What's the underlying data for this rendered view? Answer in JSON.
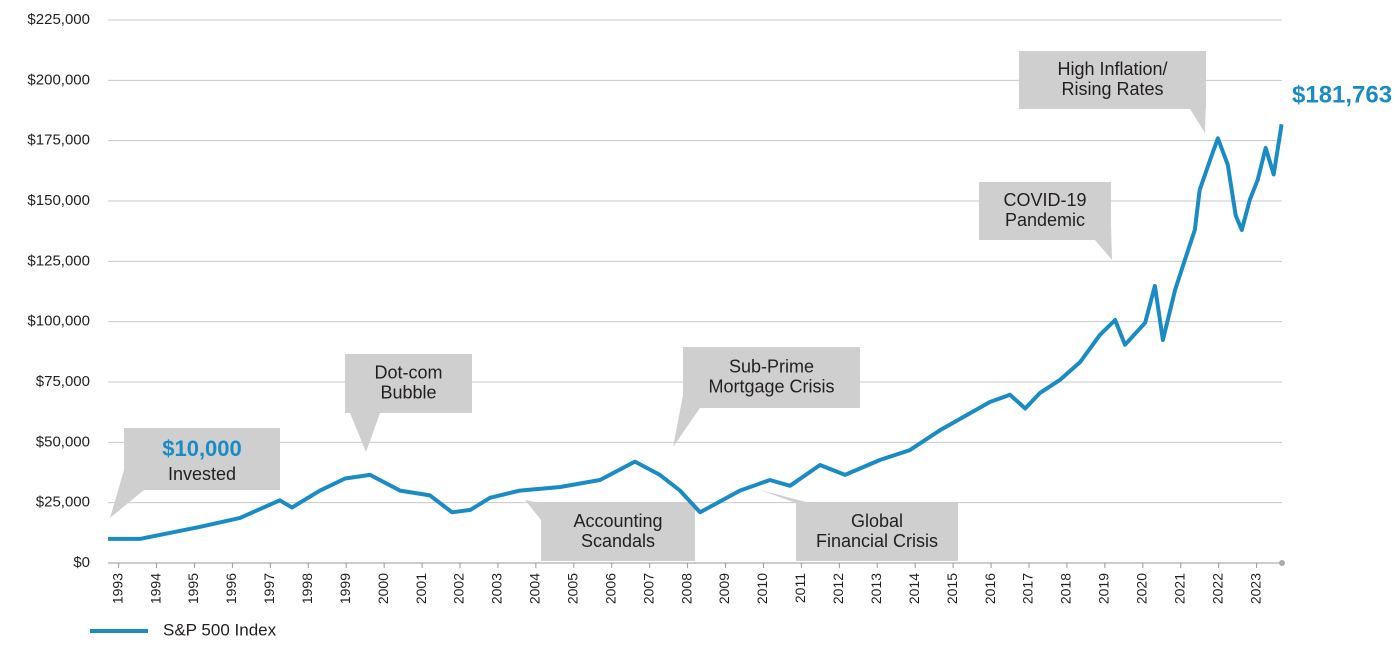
{
  "chart_data": {
    "type": "line",
    "series": [
      {
        "name": "S&P 500 Index",
        "color": "#1a8bc4",
        "values": [
          10000,
          10000,
          15000,
          18700,
          26000,
          23000,
          30000,
          35000,
          36500,
          30000,
          28000,
          21000,
          22000,
          27000,
          30000,
          31500,
          34400,
          42000,
          36500,
          30000,
          21000,
          30000,
          34400,
          32000,
          40600,
          36500,
          42700,
          46800,
          55000,
          62000,
          66700,
          69700,
          64000,
          70500,
          75900,
          83300,
          94500,
          100700,
          90400,
          99500,
          114800,
          92400,
          113000,
          125600,
          138000,
          154600,
          169000,
          176000,
          165000,
          144000,
          138000,
          150500,
          158800,
          172000,
          161000,
          181763
        ]
      }
    ],
    "x": [
      1992.72,
      1993.56,
      1995.15,
      1996.2,
      1997.25,
      1997.57,
      1998.31,
      1998.97,
      1999.63,
      2000.42,
      2001.21,
      2001.79,
      2002.27,
      2002.79,
      2003.58,
      2004.64,
      2005.69,
      2006.61,
      2007.27,
      2007.8,
      2008.33,
      2009.38,
      2010.17,
      2010.7,
      2011.49,
      2012.15,
      2013.07,
      2013.86,
      2014.65,
      2015.44,
      2015.97,
      2016.5,
      2016.9,
      2017.29,
      2017.82,
      2018.35,
      2018.87,
      2019.27,
      2019.53,
      2020.06,
      2020.32,
      2020.53,
      2020.85,
      2021.11,
      2021.37,
      2021.5,
      2021.82,
      2021.98,
      2022.24,
      2022.45,
      2022.61,
      2022.82,
      2023.03,
      2023.24,
      2023.45,
      2023.66
    ],
    "xlim": [
      1992.72,
      2023.67
    ],
    "xticks": [
      1993,
      1994,
      1995,
      1996,
      1997,
      1998,
      1999,
      2000,
      2001,
      2002,
      2003,
      2004,
      2005,
      2006,
      2007,
      2008,
      2009,
      2010,
      2011,
      2012,
      2013,
      2014,
      2015,
      2016,
      2017,
      2018,
      2019,
      2020,
      2021,
      2022,
      2023
    ],
    "ylim": [
      0,
      225000
    ],
    "yticks": [
      {
        "value": 0,
        "label": "$0"
      },
      {
        "value": 25000,
        "label": "$25,000"
      },
      {
        "value": 50000,
        "label": "$50,000"
      },
      {
        "value": 75000,
        "label": "$75,000"
      },
      {
        "value": 100000,
        "label": "$100,000"
      },
      {
        "value": 125000,
        "label": "$125,000"
      },
      {
        "value": 150000,
        "label": "$150,000"
      },
      {
        "value": 175000,
        "label": "$175,000"
      },
      {
        "value": 200000,
        "label": "$200,000"
      },
      {
        "value": 225000,
        "label": "$225,000"
      }
    ],
    "grid": true,
    "start_label": "$10,000",
    "end_label": "$181,763",
    "annotations": [
      {
        "lines": [
          "Invested"
        ]
      },
      {
        "lines": [
          "Dot-com",
          "Bubble"
        ]
      },
      {
        "lines": [
          "Sub-Prime",
          "Mortgage Crisis"
        ]
      },
      {
        "lines": [
          "Accounting",
          "Scandals"
        ]
      },
      {
        "lines": [
          "Global",
          "Financial Crisis"
        ]
      },
      {
        "lines": [
          "COVID-19",
          "Pandemic"
        ]
      },
      {
        "lines": [
          "High Inflation/",
          "Rising Rates"
        ]
      }
    ]
  }
}
